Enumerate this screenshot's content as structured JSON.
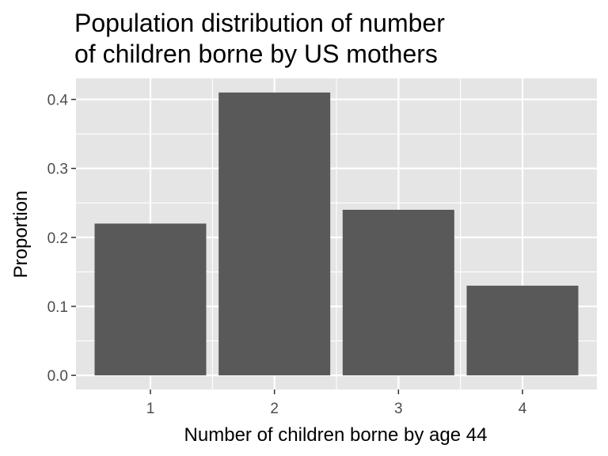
{
  "chart_data": {
    "type": "bar",
    "title": "Population distribution of number\nof children borne by US mothers",
    "xlabel": "Number of children borne by age 44",
    "ylabel": "Proportion",
    "categories": [
      "1",
      "2",
      "3",
      "4"
    ],
    "values": [
      0.22,
      0.41,
      0.24,
      0.13
    ],
    "ylim": [
      -0.0205,
      0.4305
    ],
    "yticks": [
      "0.0",
      "0.1",
      "0.2",
      "0.3",
      "0.4"
    ],
    "grid": true,
    "colors": {
      "panel": "#e5e5e5",
      "grid": "#ffffff",
      "bar": "#595959",
      "tick_text": "#4d4d4d"
    }
  }
}
